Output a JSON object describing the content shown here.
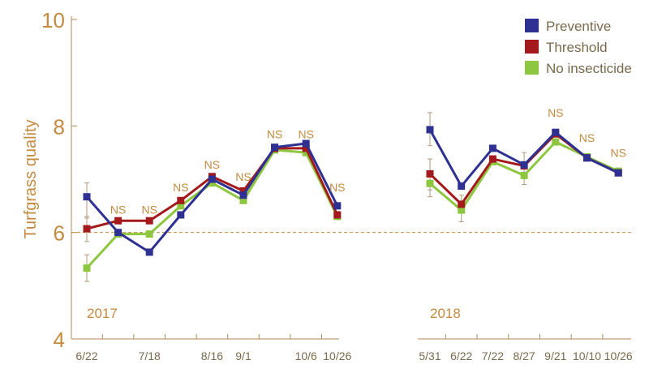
{
  "chart_data": {
    "type": "line",
    "ylabel": "Turfgrass quality",
    "ylim": [
      4,
      10
    ],
    "yticks": [
      4,
      6,
      8,
      10
    ],
    "grid": false,
    "legend": {
      "placement": "top-right",
      "entries": [
        {
          "name": "Preventive",
          "color": "#2e3192"
        },
        {
          "name": "Threshold",
          "color": "#a3191c"
        },
        {
          "name": "No insecticide",
          "color": "#8dc63f"
        }
      ]
    },
    "reference_line": {
      "y": 6,
      "style": "dashed",
      "color": "#c38a40"
    },
    "panels": [
      {
        "year_label": "2017",
        "x_tick_labels": [
          "6/22",
          "7/18",
          "8/16",
          "9/1",
          "10/6",
          "10/26"
        ],
        "x_tick_label_positions": [
          0,
          2,
          4,
          5,
          7,
          8
        ],
        "sample_count": 9,
        "series": [
          {
            "name": "Preventive",
            "values": [
              6.67,
              6.0,
              5.63,
              6.33,
              7.0,
              6.7,
              7.6,
              7.67,
              6.5
            ]
          },
          {
            "name": "Threshold",
            "values": [
              6.07,
              6.22,
              6.22,
              6.6,
              7.05,
              6.78,
              7.58,
              7.58,
              6.33
            ]
          },
          {
            "name": "No insecticide",
            "values": [
              5.33,
              5.97,
              5.97,
              6.5,
              6.93,
              6.6,
              7.55,
              7.5,
              6.3
            ]
          }
        ],
        "annotations": [
          {
            "label": "NS",
            "index": 1,
            "y": 6.35
          },
          {
            "label": "NS",
            "index": 2,
            "y": 6.35
          },
          {
            "label": "NS",
            "index": 3,
            "y": 6.77
          },
          {
            "label": "NS",
            "index": 4,
            "y": 7.2
          },
          {
            "label": "NS",
            "index": 5,
            "y": 6.97
          },
          {
            "label": "NS",
            "index": 6,
            "y": 7.77
          },
          {
            "label": "NS",
            "index": 7,
            "y": 7.77
          },
          {
            "label": "NS",
            "index": 8,
            "y": 6.77
          }
        ],
        "error_bars": [
          {
            "index": 0,
            "low": 6.27,
            "high": 6.93
          },
          {
            "index": 0,
            "low": 5.83,
            "high": 6.3
          },
          {
            "index": 0,
            "low": 5.08,
            "high": 5.58
          }
        ]
      },
      {
        "year_label": "2018",
        "x_tick_labels": [
          "5/31",
          "6/22",
          "7/22",
          "8/27",
          "9/21",
          "10/10",
          "10/26"
        ],
        "x_tick_label_positions": [
          0,
          1,
          2,
          3,
          4,
          5,
          6
        ],
        "sample_count": 7,
        "series": [
          {
            "name": "Preventive",
            "values": [
              7.93,
              6.87,
              7.58,
              7.27,
              7.88,
              7.4,
              7.12
            ]
          },
          {
            "name": "Threshold",
            "values": [
              7.1,
              6.53,
              7.38,
              7.25,
              7.85,
              7.4,
              7.12
            ]
          },
          {
            "name": "No insecticide",
            "values": [
              6.92,
              6.42,
              7.33,
              7.07,
              7.7,
              7.42,
              7.15
            ]
          }
        ],
        "annotations": [
          {
            "label": "NS",
            "index": 4,
            "y": 8.17
          },
          {
            "label": "NS",
            "index": 5,
            "y": 7.7
          },
          {
            "label": "NS",
            "index": 6,
            "y": 7.42
          }
        ],
        "error_bars": [
          {
            "index": 0,
            "low": 7.63,
            "high": 8.25
          },
          {
            "index": 0,
            "low": 6.8,
            "high": 7.38
          },
          {
            "index": 0,
            "low": 6.67,
            "high": 7.15
          },
          {
            "index": 1,
            "low": 6.2,
            "high": 6.7
          },
          {
            "index": 3,
            "low": 6.9,
            "high": 7.5
          }
        ]
      }
    ]
  }
}
